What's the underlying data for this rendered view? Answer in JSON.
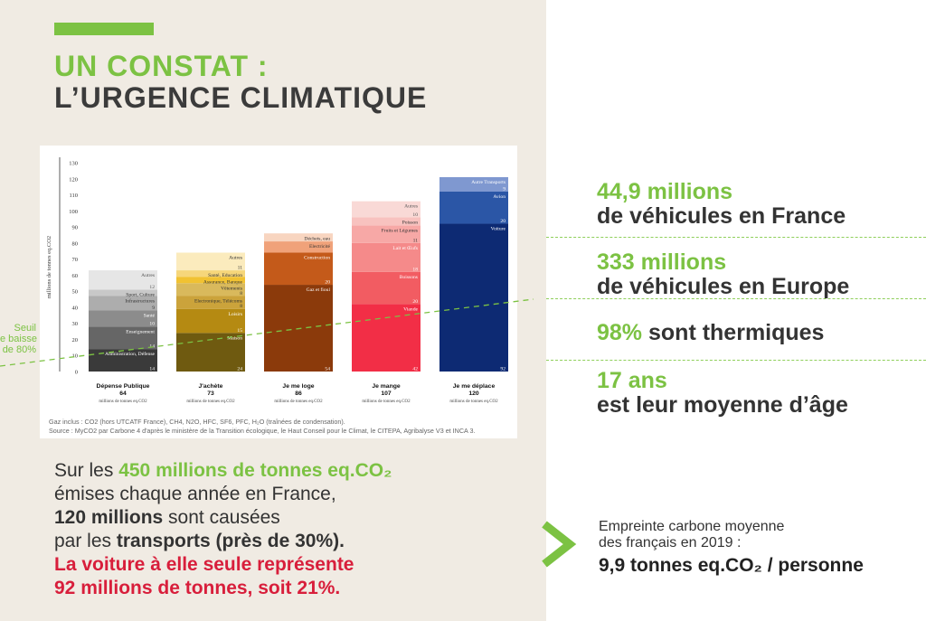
{
  "headline": {
    "line1": "UN CONSTAT :",
    "line2": "L’URGENCE CLIMATIQUE"
  },
  "seuil": {
    "line1": "Seuil",
    "line2": "e baisse",
    "line3": "de 80%"
  },
  "colors": {
    "green": "#7cc243",
    "red": "#d81e3b",
    "dark": "#3b3b3b",
    "panel": "#f0ebe3"
  },
  "chart_data": {
    "type": "bar",
    "stacked": true,
    "ylabel": "millions de tonnes eq.CO2",
    "ylim": [
      0,
      130
    ],
    "yticks": [
      0,
      10,
      20,
      30,
      40,
      50,
      60,
      70,
      80,
      90,
      100,
      110,
      120,
      130
    ],
    "grid": false,
    "categories": [
      {
        "name": "Dépense Publique",
        "total": "64",
        "unit": "millions de tonnes eq.CO2",
        "segments": [
          {
            "label": "Administration, Défense",
            "value": 14,
            "color": "#3a3a3a",
            "text_color": "#ffffff"
          },
          {
            "label": "Enseignement",
            "value": 14,
            "color": "#666666",
            "text_color": "#ffffff"
          },
          {
            "label": "Santé",
            "value": 10,
            "color": "#8c8c8c",
            "text_color": "#ffffff"
          },
          {
            "label": "Infrastructures",
            "value": 9,
            "color": "#adadad",
            "text_color": "#333333"
          },
          {
            "label": "Sport, Culture",
            "value": 4,
            "color": "#c8c8c8",
            "text_color": "#333333"
          },
          {
            "label": "Autres",
            "value": 12,
            "color": "#e6e6e6",
            "text_color": "#555555"
          }
        ]
      },
      {
        "name": "J'achète",
        "total": "73",
        "unit": "millions de tonnes eq.CO2",
        "segments": [
          {
            "label": "Maison",
            "value": 24,
            "color": "#6f5a10",
            "text_color": "#ffffff"
          },
          {
            "label": "Loisirs",
            "value": 15,
            "color": "#b58a12",
            "text_color": "#ffffff"
          },
          {
            "label": "Electronique, Télécoms",
            "value": 8,
            "color": "#cba33b",
            "text_color": "#333333"
          },
          {
            "label": "Vêtements",
            "value": 8,
            "color": "#d9b95c",
            "text_color": "#333333"
          },
          {
            "label": "Assurance, Banque",
            "value": 4,
            "color": "#f1c232",
            "text_color": "#333333"
          },
          {
            "label": "Santé, Education",
            "value": 4,
            "color": "#f6d67a",
            "text_color": "#333333"
          },
          {
            "label": "Autres",
            "value": 11,
            "color": "#fbebbd",
            "text_color": "#333333"
          }
        ]
      },
      {
        "name": "Je me loge",
        "total": "86",
        "unit": "millions de tonnes eq.CO2",
        "segments": [
          {
            "label": "Gaz et fioul",
            "value": 54,
            "color": "#8b3a0b",
            "text_color": "#ffffff"
          },
          {
            "label": "Construction",
            "value": 20,
            "color": "#c45a1a",
            "text_color": "#ffffff"
          },
          {
            "label": "Electricité",
            "value": 7,
            "color": "#f0a27a",
            "text_color": "#333333"
          },
          {
            "label": "Déchets, eau",
            "value": 5,
            "color": "#f8d5c0",
            "text_color": "#333333"
          }
        ]
      },
      {
        "name": "Je mange",
        "total": "107",
        "unit": "millions de tonnes eq.CO2",
        "segments": [
          {
            "label": "Viande",
            "value": 42,
            "color": "#f22e46",
            "text_color": "#ffffff"
          },
          {
            "label": "Boissons",
            "value": 20,
            "color": "#f25c62",
            "text_color": "#ffffff"
          },
          {
            "label": "Lait et Œufs",
            "value": 18,
            "color": "#f58a8a",
            "text_color": "#ffffff"
          },
          {
            "label": "Fruits et Légumes",
            "value": 11,
            "color": "#f7a8a6",
            "text_color": "#333333"
          },
          {
            "label": "Poisson",
            "value": 5,
            "color": "#f8c2bf",
            "text_color": "#333333"
          },
          {
            "label": "Autres",
            "value": 10,
            "color": "#f9d9d6",
            "text_color": "#555555"
          }
        ]
      },
      {
        "name": "Je me déplace",
        "total": "120",
        "unit": "millions de tonnes eq.CO2",
        "segments": [
          {
            "label": "Voiture",
            "value": 92,
            "color": "#0d2a73",
            "text_color": "#ffffff"
          },
          {
            "label": "Avion",
            "value": 20,
            "color": "#2b56a6",
            "text_color": "#ffffff"
          },
          {
            "label": "Autre Transports",
            "value": 9,
            "color": "#7f98d0",
            "text_color": "#ffffff"
          }
        ]
      }
    ],
    "footnote1": "Gaz inclus : CO2 (hors UTCATF France), CH4, N2O, HFC, SF6, PFC, H₂O (traînées de condensation).",
    "footnote2": "Source : MyCO2 par Carbone 4 d'après le ministère de la Transition écologique, le Haut Conseil pour le Climat, le CITEPA, Agribalyse V3 et INCA 3."
  },
  "body": {
    "p1": "Sur les ",
    "p1_hl": "450 millions de tonnes eq.CO₂",
    "p2": "émises chaque année en France,",
    "p3_hl": "120 millions",
    "p3": " sont causées",
    "p4": "par les ",
    "p4_hl": "transports (près de 30%).",
    "p5": "La voiture à elle seule représente",
    "p6": "92 millions de tonnes, soit 21%."
  },
  "stats": {
    "s1_num": "44,9 millions",
    "s1_txt": "de véhicules en France",
    "s2_num": "333 millions",
    "s2_txt": "de véhicules en Europe",
    "s3_num": "98%",
    "s3_txt": " sont thermiques",
    "s4_num": "17 ans",
    "s4_txt": "est leur moyenne d’âge"
  },
  "empreinte": {
    "line1": "Empreinte carbone moyenne",
    "line2": "des français en 2019 :",
    "value": "9,9 tonnes eq.CO₂ / personne"
  }
}
